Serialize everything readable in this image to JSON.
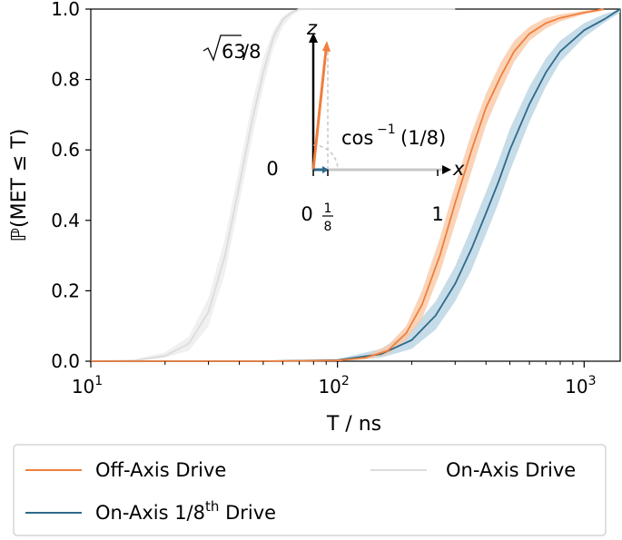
{
  "chart_data": {
    "type": "line",
    "title": "",
    "xlabel": "T / ns",
    "ylabel": "ℙ(MET ≤ T)",
    "xscale": "log",
    "xlim": [
      10,
      1400
    ],
    "ylim": [
      0,
      1.0
    ],
    "xticks": [
      {
        "value": 10,
        "base": "10",
        "exp": "1"
      },
      {
        "value": 100,
        "base": "10",
        "exp": "2"
      },
      {
        "value": 1000,
        "base": "10",
        "exp": "3"
      }
    ],
    "yticks": [
      "0.0",
      "0.2",
      "0.4",
      "0.6",
      "0.8",
      "1.0"
    ],
    "grid": false,
    "legend_position": "bottom",
    "series": [
      {
        "name": "Off-Axis Drive",
        "color": "#f07f3c",
        "band_color": "#f9c9a6",
        "x": [
          10,
          50,
          100,
          130,
          160,
          190,
          220,
          260,
          300,
          350,
          400,
          460,
          520,
          600,
          700,
          800,
          1000,
          1200
        ],
        "y": [
          0,
          0,
          0.002,
          0.01,
          0.03,
          0.08,
          0.16,
          0.3,
          0.45,
          0.6,
          0.72,
          0.81,
          0.88,
          0.93,
          0.96,
          0.975,
          0.99,
          1.0
        ],
        "lower": [
          0,
          0,
          0,
          0.005,
          0.02,
          0.06,
          0.12,
          0.25,
          0.39,
          0.54,
          0.67,
          0.77,
          0.85,
          0.91,
          0.945,
          0.965,
          0.985,
          0.995
        ],
        "upper": [
          0,
          0,
          0.005,
          0.015,
          0.045,
          0.1,
          0.2,
          0.35,
          0.5,
          0.65,
          0.76,
          0.85,
          0.91,
          0.95,
          0.975,
          0.985,
          0.995,
          1.0
        ]
      },
      {
        "name": "On-Axis Drive",
        "color": "#dcdcdc",
        "band_color": "#ececec",
        "x": [
          10,
          15,
          20,
          25,
          30,
          35,
          40,
          45,
          50,
          55,
          60,
          65,
          70,
          80,
          100,
          200,
          300
        ],
        "y": [
          0,
          0.002,
          0.015,
          0.05,
          0.14,
          0.3,
          0.5,
          0.68,
          0.82,
          0.92,
          0.97,
          0.99,
          1.0,
          1.0,
          1.0,
          1.0,
          1.0
        ],
        "lower": [
          0,
          0,
          0.01,
          0.03,
          0.1,
          0.25,
          0.45,
          0.63,
          0.78,
          0.89,
          0.95,
          0.98,
          0.995,
          1.0,
          1.0,
          1.0,
          1.0
        ],
        "upper": [
          0,
          0.005,
          0.025,
          0.07,
          0.18,
          0.35,
          0.55,
          0.73,
          0.86,
          0.94,
          0.98,
          0.995,
          1.0,
          1.0,
          1.0,
          1.0,
          1.0
        ]
      },
      {
        "name": "On-Axis 1/8th Drive",
        "color": "#2e6a8a",
        "band_color": "#b8d3e2",
        "x": [
          10,
          50,
          100,
          150,
          200,
          250,
          300,
          350,
          400,
          450,
          500,
          600,
          700,
          800,
          1000,
          1200,
          1400
        ],
        "y": [
          0,
          0,
          0.003,
          0.02,
          0.06,
          0.13,
          0.22,
          0.32,
          0.42,
          0.51,
          0.6,
          0.73,
          0.82,
          0.88,
          0.94,
          0.97,
          1.0
        ],
        "lower": [
          0,
          0,
          0,
          0.01,
          0.035,
          0.09,
          0.17,
          0.26,
          0.36,
          0.45,
          0.54,
          0.68,
          0.78,
          0.85,
          0.92,
          0.96,
          0.99
        ],
        "upper": [
          0,
          0,
          0.006,
          0.035,
          0.09,
          0.17,
          0.27,
          0.38,
          0.48,
          0.57,
          0.66,
          0.78,
          0.86,
          0.91,
          0.96,
          0.985,
          1.0
        ]
      }
    ],
    "legend": {
      "entries": [
        {
          "main": "Off-Axis Drive",
          "sup": "",
          "tail": ""
        },
        {
          "main": "On-Axis Drive",
          "sup": "",
          "tail": ""
        },
        {
          "main": "On-Axis 1/8",
          "sup": "th",
          "tail": " Drive"
        }
      ]
    },
    "inset": {
      "z_label": "z",
      "x_label": "x",
      "top_label_num": "63",
      "top_label_den": "/8",
      "zero_label": "0",
      "angle_label_fn": "cos",
      "angle_label_sup": "−1",
      "angle_label_arg": "(1/8)",
      "x_tick_zero": "0",
      "x_tick_frac_num": "1",
      "x_tick_frac_den": "8",
      "x_tick_one": "1",
      "vector_color": "#f07f3c",
      "short_vector_color": "#2e6a8a",
      "axis_line_color": "#c8c8c8"
    }
  }
}
